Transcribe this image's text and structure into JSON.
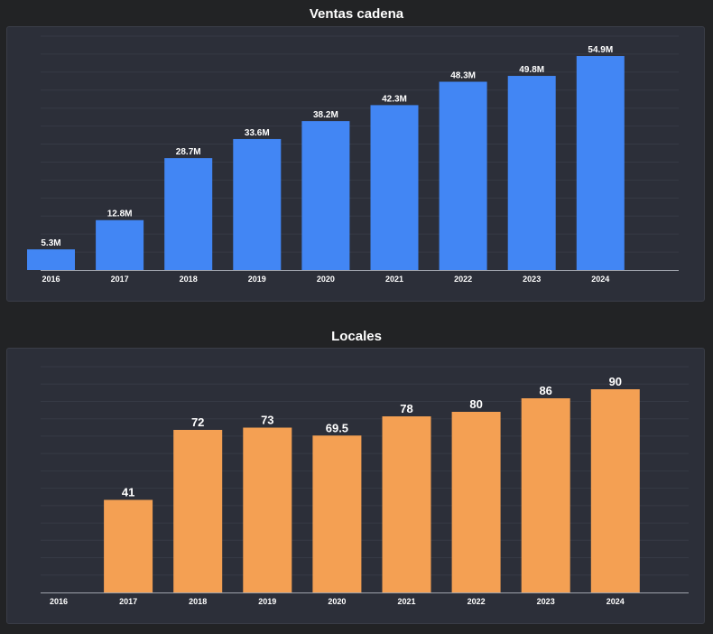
{
  "chart_data": [
    {
      "type": "bar",
      "title": "Ventas cadena",
      "categories": [
        "2016",
        "2017",
        "2018",
        "2019",
        "2020",
        "2021",
        "2022",
        "2023",
        "2024"
      ],
      "values": [
        5.3,
        12.8,
        28.7,
        33.6,
        38.2,
        42.3,
        48.3,
        49.8,
        54.9
      ],
      "labels": [
        "5.3M",
        "12.8M",
        "28.7M",
        "33.6M",
        "38.2M",
        "42.3M",
        "48.3M",
        "49.8M",
        "54.9M"
      ],
      "ylim": [
        0,
        60
      ],
      "grid": true,
      "color": "#4286f4"
    },
    {
      "type": "bar",
      "title": "Locales",
      "categories": [
        "2016",
        "2017",
        "2018",
        "2019",
        "2020",
        "2021",
        "2022",
        "2023",
        "2024"
      ],
      "values": [
        null,
        41,
        72,
        73,
        69.5,
        78,
        80,
        86,
        90
      ],
      "labels": [
        "",
        "41",
        "72",
        "73",
        "69.5",
        "78",
        "80",
        "86",
        "90"
      ],
      "ylim": [
        0,
        100
      ],
      "grid": true,
      "color": "#f4a053"
    }
  ]
}
